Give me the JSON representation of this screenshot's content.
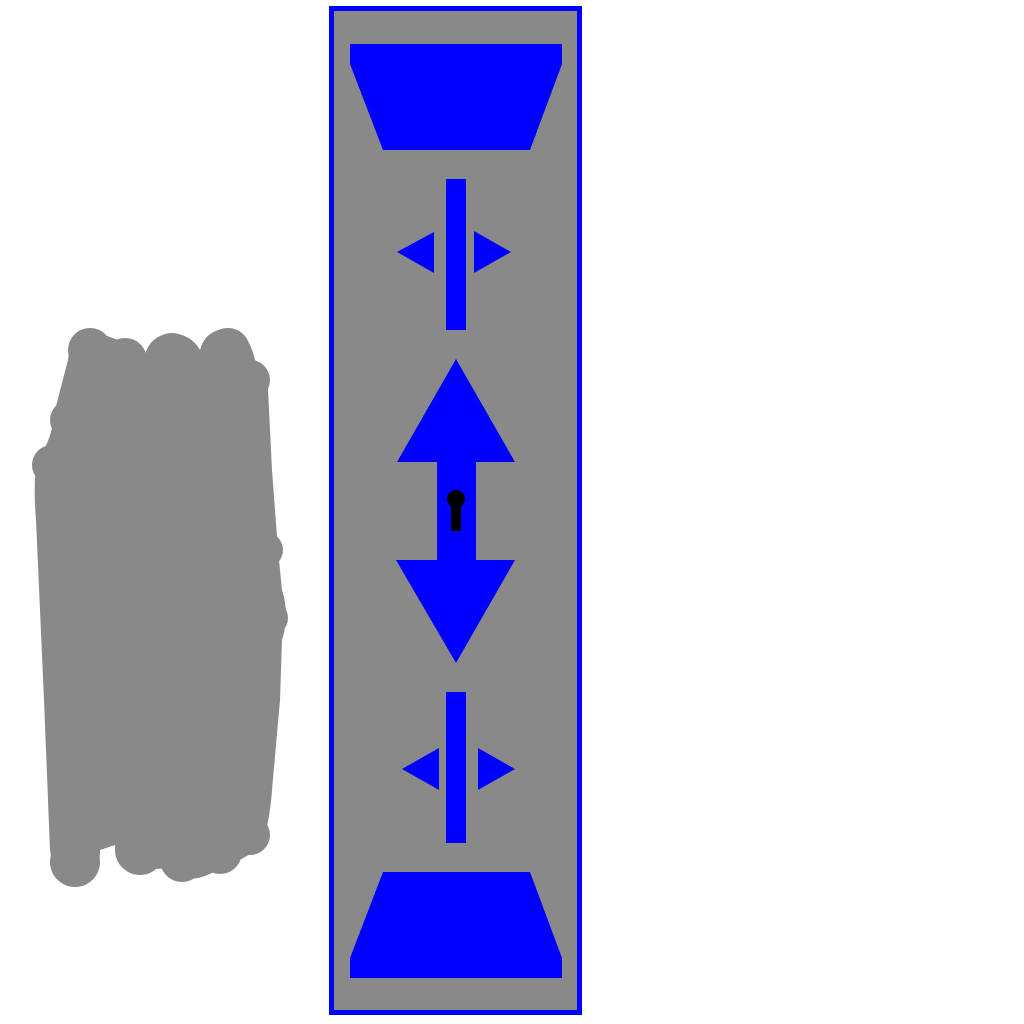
{
  "colors": {
    "background": "#ffffff",
    "panel_fill": "#898989",
    "panel_border": "#0000ff",
    "control_fill": "#0000ff",
    "scribble": "#898989",
    "lock": "#000000"
  },
  "controls": {
    "top_block": {
      "icon": "trapezoid-top-icon"
    },
    "upper_separator": {
      "icon": "horizontal-resize-icon"
    },
    "center_mover": {
      "icon": "vertical-move-arrows-icon",
      "locked": true
    },
    "lower_separator": {
      "icon": "horizontal-resize-icon"
    },
    "bottom_block": {
      "icon": "trapezoid-bottom-icon"
    }
  },
  "scribble": {
    "icon": "gray-scribble-shape"
  }
}
